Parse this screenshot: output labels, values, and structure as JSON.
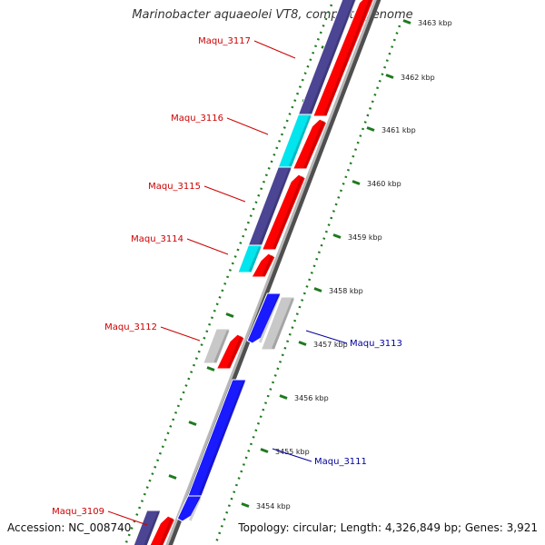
{
  "header": {
    "title": "Marinobacter aquaeolei VT8, complete genome"
  },
  "footer": {
    "accession": "Accession: NC_008740",
    "topology": "Topology: circular; Length: 4,326,849 bp; Genes: 3,921"
  },
  "colors": {
    "backbone": "#9a9a9a",
    "tick": "#1e7a1e",
    "forward_gene_label": "#cc0000",
    "reverse_gene_label": "#000099",
    "cds_forward": "#ff0000",
    "cds_navy": "#4b4594",
    "cds_cyan": "#00e5ee",
    "cds_grey": "#c8c8c8",
    "cds_reverse": "#1a1aff"
  },
  "scale": {
    "unit": "kbp",
    "ticks": [
      "3454 kbp",
      "3455 kbp",
      "3456 kbp",
      "3457 kbp",
      "3458 kbp",
      "3459 kbp",
      "3460 kbp",
      "3461 kbp",
      "3462 kbp",
      "3463 kbp"
    ]
  },
  "gene_labels": [
    {
      "text": "Maqu_3117",
      "side": "left",
      "color": "#cc0000"
    },
    {
      "text": "Maqu_3116",
      "side": "left",
      "color": "#cc0000"
    },
    {
      "text": "Maqu_3115",
      "side": "left",
      "color": "#cc0000"
    },
    {
      "text": "Maqu_3114",
      "side": "left",
      "color": "#cc0000"
    },
    {
      "text": "Maqu_3112",
      "side": "left",
      "color": "#cc0000"
    },
    {
      "text": "Maqu_3113",
      "side": "right",
      "color": "#000099"
    },
    {
      "text": "Maqu_3111",
      "side": "right",
      "color": "#000099"
    },
    {
      "text": "Maqu_3109",
      "side": "left",
      "color": "#cc0000"
    }
  ]
}
